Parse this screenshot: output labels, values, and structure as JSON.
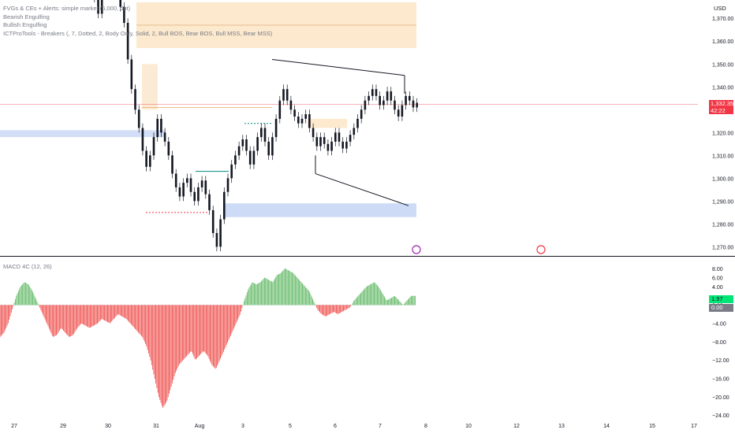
{
  "indicators": {
    "fvg": "FVGs & CEs + Alerts: simple market (5,000, dot)",
    "bearish": "Bearish Engulfing",
    "bullish": "Bullish Engulfing",
    "ict": "ICTProTools - Breakers (, 7, Dotted, 2, Body Only, Solid, 2, Bull BOS, Bear BOS, Bull MSS, Bear MSS)",
    "macd": "MACD 4C (12, 26)"
  },
  "price_axis": {
    "currency": "USD"
  },
  "last_price": {
    "value": "1,332.35",
    "countdown": "42:22",
    "color": "#f23645"
  },
  "macd_last": {
    "value": "1.97",
    "zero": "0.00",
    "pos_color": "#00e676",
    "neg_color": "#f23645"
  },
  "chart_data": [
    {
      "type": "candlestick",
      "ylim": [
        1266,
        1378
      ],
      "ytick_labels": [
        "1,370.00",
        "1,360.00",
        "1,350.00",
        "1,340.00",
        "1,330.00",
        "1,320.00",
        "1,310.00",
        "1,300.00",
        "1,290.00",
        "1,280.00",
        "1,270.00"
      ],
      "yticks": [
        1370,
        1360,
        1350,
        1340,
        1330,
        1320,
        1310,
        1300,
        1290,
        1280,
        1270
      ],
      "x_labels": [
        "27",
        "29",
        "30",
        "31",
        "Aug",
        "3",
        "5",
        "6",
        "7",
        "8",
        "10",
        "12",
        "13",
        "14",
        "15",
        "17"
      ],
      "close_path": [
        1392,
        1388,
        1380,
        1384,
        1390,
        1385,
        1379,
        1372,
        1385,
        1392,
        1389,
        1383,
        1380,
        1375,
        1368,
        1352,
        1339,
        1330,
        1322,
        1312,
        1305,
        1310,
        1318,
        1326,
        1320,
        1316,
        1310,
        1302,
        1296,
        1292,
        1298,
        1300,
        1294,
        1290,
        1296,
        1299,
        1293,
        1286,
        1276,
        1270,
        1282,
        1294,
        1300,
        1306,
        1310,
        1314,
        1317,
        1312,
        1306,
        1312,
        1318,
        1322,
        1316,
        1310,
        1318,
        1326,
        1334,
        1339,
        1334,
        1330,
        1327,
        1324,
        1326,
        1328,
        1322,
        1318,
        1314,
        1318,
        1315,
        1312,
        1316,
        1320,
        1316,
        1313,
        1316,
        1319,
        1322,
        1326,
        1330,
        1334,
        1336,
        1339,
        1336,
        1332,
        1334,
        1338,
        1334,
        1330,
        1327,
        1332,
        1336,
        1334,
        1331,
        1333
      ],
      "series": [
        {
          "name": "",
          "values": []
        }
      ],
      "last_price": 1332.35,
      "annotations": {
        "wedge_upper": [
          1352,
          1345
        ],
        "wedge_lower": [
          1302,
          1288
        ]
      }
    },
    {
      "type": "bar",
      "title": "MACD 4C (12, 26)",
      "ylim": [
        -24.5,
        9
      ],
      "yticks": [
        8,
        6,
        4,
        0,
        -4,
        -8,
        -12,
        -16,
        -20,
        -24
      ],
      "ytick_labels": [
        "8.00",
        "6.00",
        "4.00",
        "0.00",
        "−4.00",
        "−8.00",
        "−12.00",
        "−16.00",
        "−20.00",
        "−24.00"
      ],
      "values_path": [
        -7,
        -6,
        -4,
        -1,
        2,
        4,
        5,
        4.5,
        3,
        1,
        -1,
        -3,
        -5,
        -7,
        -6.5,
        -5,
        -6,
        -7,
        -6.5,
        -5,
        -4,
        -4.5,
        -5,
        -4.5,
        -4,
        -3,
        -3.5,
        -4,
        -3,
        -2,
        -2.5,
        -3,
        -4,
        -5,
        -6,
        -7,
        -9,
        -12,
        -16,
        -20,
        -22.5,
        -21,
        -18,
        -15,
        -13,
        -12,
        -11,
        -10,
        -12,
        -11,
        -10,
        -11,
        -13,
        -14,
        -12,
        -10,
        -8,
        -6,
        -4,
        -2,
        1,
        3.5,
        5,
        4.5,
        5,
        6,
        5.5,
        5,
        6.5,
        7,
        8,
        7.5,
        7,
        6,
        5,
        4,
        3,
        1,
        -1,
        -2,
        -2.5,
        -2,
        -1.5,
        -2,
        -1.5,
        -1,
        -0.5,
        1,
        2,
        3,
        4,
        4.5,
        5,
        4,
        2.5,
        1,
        1.5,
        2,
        1,
        0,
        1,
        2,
        2
      ]
    }
  ]
}
